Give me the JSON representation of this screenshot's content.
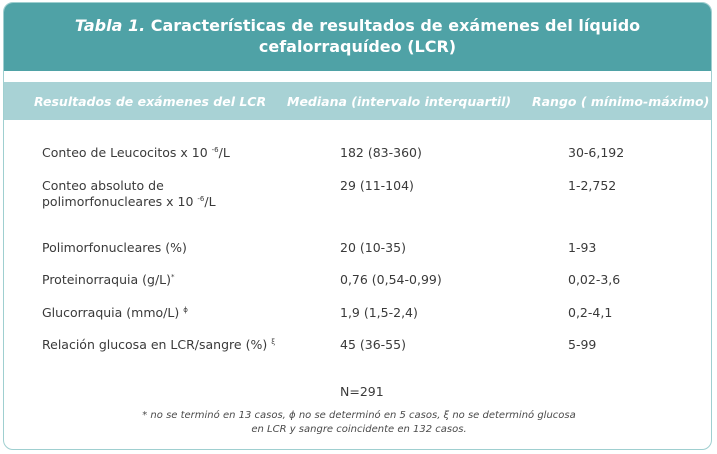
{
  "title": {
    "number": "Tabla 1.",
    "text": "Características de resultados de exámenes del líquido cefalorraquídeo (LCR)"
  },
  "headers": {
    "col1": "Resultados de exámenes del LCR",
    "col2": "Mediana (intervalo interquartil)",
    "col3": "Rango ( mínimo-máximo)"
  },
  "rows": [
    {
      "label": "Conteo de Leucocitos x 10",
      "sup": "-6",
      "suffix": "/L",
      "median": "182 (83-360)",
      "range": "30-6,192"
    },
    {
      "label_line1": "Conteo absoluto de",
      "label_line2": "polimorfonucleares x 10",
      "sup": "-6",
      "suffix": "/L",
      "median": "29 (11-104)",
      "range": "1-2,752"
    },
    {
      "label": "Polimorfonucleares (%)",
      "median": "20 (10-35)",
      "range": "1-93"
    },
    {
      "label": "Proteinorraquia (g/L)",
      "sup": "*",
      "median": "0,76 (0,54-0,99)",
      "range": "0,02-3,6"
    },
    {
      "label": "Glucorraquia (mmo/L)",
      "sup": "ϕ",
      "median": "1,9 (1,5-2,4)",
      "range": "0,2-4,1"
    },
    {
      "label": "Relación glucosa en LCR/sangre (%)",
      "sup": "ξ",
      "median": "45 (36-55)",
      "range": "5-99"
    }
  ],
  "total": "N=291",
  "footnote": {
    "line1": "* no se terminó en 13 casos, ϕ no se determinó en 5 casos, ξ no se determinó glucosa",
    "line2": "en LCR y sangre coincidente en 132 casos."
  }
}
